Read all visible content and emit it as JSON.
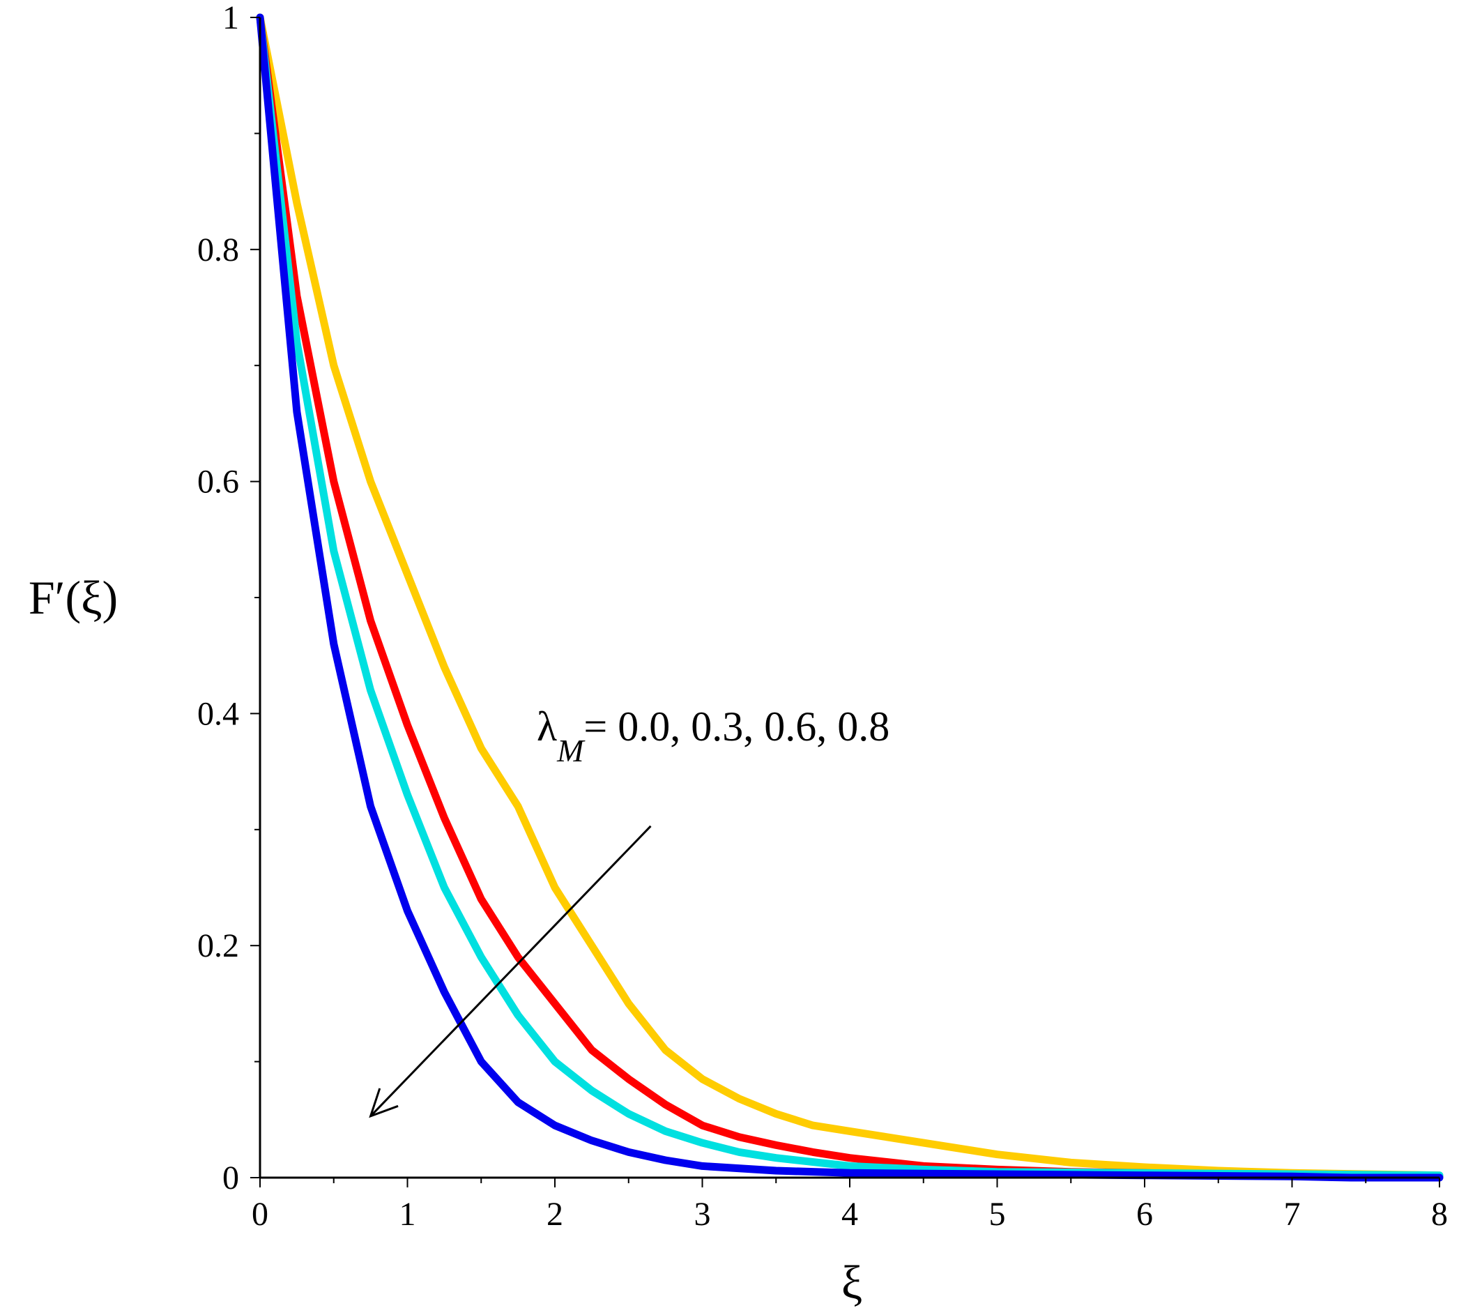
{
  "chart_data": {
    "type": "line",
    "title": "",
    "xlabel": "ξ",
    "ylabel": "F′(ξ)",
    "xlim": [
      0,
      8
    ],
    "ylim": [
      0,
      1
    ],
    "x_ticks": [
      "0",
      "1",
      "2",
      "3",
      "4",
      "5",
      "6",
      "7",
      "8"
    ],
    "y_ticks": [
      "0",
      "0.2",
      "0.4",
      "0.6",
      "0.8",
      "1"
    ],
    "grid": false,
    "legend": "none",
    "annotation": {
      "symbol": "λ",
      "subscript": "M",
      "text": "= 0.0, 0.3, 0.6, 0.8",
      "arrow_from": [
        2.65,
        0.303
      ],
      "arrow_to": [
        0.75,
        0.053
      ]
    },
    "series": [
      {
        "color": "#ffcc00",
        "x": [
          0,
          0.25,
          0.5,
          0.75,
          1.0,
          1.25,
          1.5,
          1.75,
          2.0,
          2.25,
          2.5,
          2.75,
          3.0,
          3.25,
          3.5,
          3.75,
          4.0,
          4.5,
          5.0,
          5.5,
          6.0,
          6.5,
          7.0,
          7.5,
          8.0
        ],
        "y": [
          1.0,
          0.84,
          0.7,
          0.6,
          0.52,
          0.44,
          0.37,
          0.32,
          0.25,
          0.2,
          0.15,
          0.11,
          0.085,
          0.068,
          0.055,
          0.045,
          0.04,
          0.03,
          0.02,
          0.013,
          0.009,
          0.006,
          0.004,
          0.003,
          0.002
        ]
      },
      {
        "color": "#ff0000",
        "x": [
          0,
          0.25,
          0.5,
          0.75,
          1.0,
          1.25,
          1.5,
          1.75,
          2.0,
          2.25,
          2.5,
          2.75,
          3.0,
          3.25,
          3.5,
          3.75,
          4.0,
          4.5,
          5.0,
          5.5,
          6.0,
          7.0,
          8.0
        ],
        "y": [
          1.0,
          0.76,
          0.6,
          0.48,
          0.39,
          0.31,
          0.24,
          0.19,
          0.15,
          0.11,
          0.085,
          0.063,
          0.045,
          0.035,
          0.028,
          0.022,
          0.017,
          0.01,
          0.007,
          0.005,
          0.004,
          0.002,
          0.001
        ]
      },
      {
        "color": "#00e0e0",
        "x": [
          0,
          0.25,
          0.5,
          0.75,
          1.0,
          1.25,
          1.5,
          1.75,
          2.0,
          2.25,
          2.5,
          2.75,
          3.0,
          3.25,
          3.5,
          4.0,
          4.5,
          5.0,
          6.0,
          7.0,
          8.0
        ],
        "y": [
          1.0,
          0.72,
          0.54,
          0.42,
          0.33,
          0.25,
          0.19,
          0.14,
          0.1,
          0.075,
          0.055,
          0.04,
          0.03,
          0.022,
          0.017,
          0.01,
          0.007,
          0.005,
          0.004,
          0.003,
          0.002
        ]
      },
      {
        "color": "#0000ee",
        "x": [
          0,
          0.25,
          0.5,
          0.75,
          1.0,
          1.25,
          1.5,
          1.75,
          2.0,
          2.25,
          2.5,
          2.75,
          3.0,
          3.5,
          4.0,
          5.0,
          6.0,
          7.0,
          7.4,
          8.0
        ],
        "y": [
          1.0,
          0.66,
          0.46,
          0.32,
          0.23,
          0.16,
          0.1,
          0.065,
          0.045,
          0.032,
          0.022,
          0.015,
          0.01,
          0.006,
          0.004,
          0.003,
          0.002,
          0.001,
          0.0,
          0.0
        ]
      }
    ]
  }
}
